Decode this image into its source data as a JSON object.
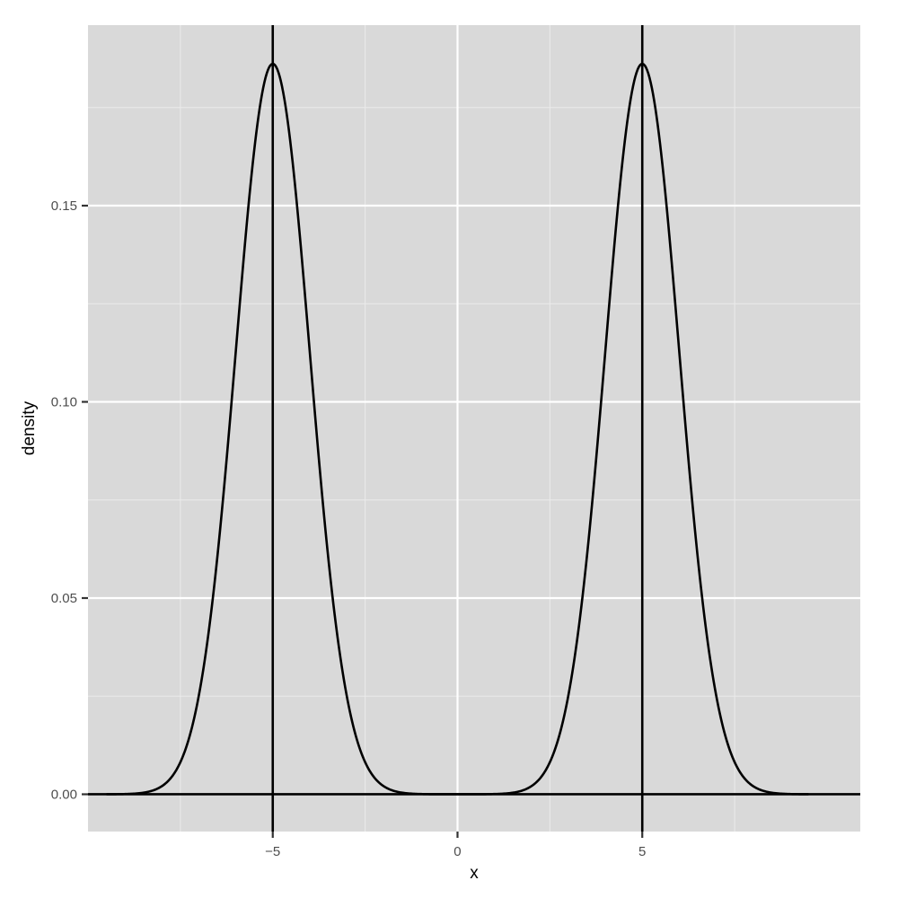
{
  "colors": {
    "panel_background": "#d9d9d9",
    "grid_major": "#ffffff",
    "grid_minor": "#ebebeb",
    "curve": "#000000",
    "vline": "#000000",
    "hline": "#000000",
    "tick_mark": "#333333",
    "tick_label": "#4d4d4d",
    "axis_title": "#000000"
  },
  "chart_data": {
    "type": "line",
    "title": "",
    "xlabel": "x",
    "ylabel": "density",
    "xlim": [
      -10,
      10.9
    ],
    "ylim": [
      -0.0095,
      0.196
    ],
    "x_ticks": [
      {
        "value": -5,
        "label": "−5"
      },
      {
        "value": 0,
        "label": "0"
      },
      {
        "value": 5,
        "label": "5"
      }
    ],
    "x_minor_ticks": [
      -7.5,
      -2.5,
      2.5,
      7.5
    ],
    "y_ticks": [
      {
        "value": 0,
        "label": "0.00"
      },
      {
        "value": 0.05,
        "label": "0.05"
      },
      {
        "value": 0.1,
        "label": "0.10"
      },
      {
        "value": 0.15,
        "label": "0.15"
      }
    ],
    "y_minor_ticks": [
      0.025,
      0.075,
      0.125,
      0.175
    ],
    "grid": true,
    "series": [
      {
        "type": "density",
        "x_range": [
          -9.5,
          9.5
        ],
        "components": [
          {
            "mean": -5,
            "sd": 1,
            "weight": 0.4666
          },
          {
            "mean": 5,
            "sd": 1,
            "weight": 0.4666
          }
        ],
        "peak_density": 0.186
      }
    ],
    "vlines": [
      -5,
      5
    ],
    "hlines": [
      0
    ]
  }
}
